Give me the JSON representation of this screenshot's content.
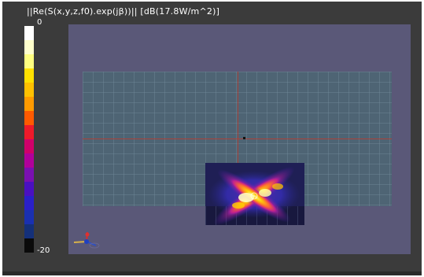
{
  "legend": {
    "title": "||Re(S(x,y,z,f0).exp(jβ))|| [dB(17.8W/m^2)]",
    "max_label": "0",
    "min_label": "-20",
    "colors": [
      "#ffffff",
      "#ffffcc",
      "#ffff80",
      "#ffe000",
      "#ffc000",
      "#ff9a00",
      "#ff5a00",
      "#ee1a2a",
      "#d0006a",
      "#b0009a",
      "#7a10b0",
      "#4a10c0",
      "#2a20c8",
      "#1a30b0",
      "#14307a",
      "#0a0a0a"
    ]
  },
  "viewport": {
    "plane_color": "#4e6474",
    "background_color": "#5a5878",
    "axis_color": "#c0392b"
  },
  "icons": {
    "axes_triad": "xyz-axes-icon"
  }
}
